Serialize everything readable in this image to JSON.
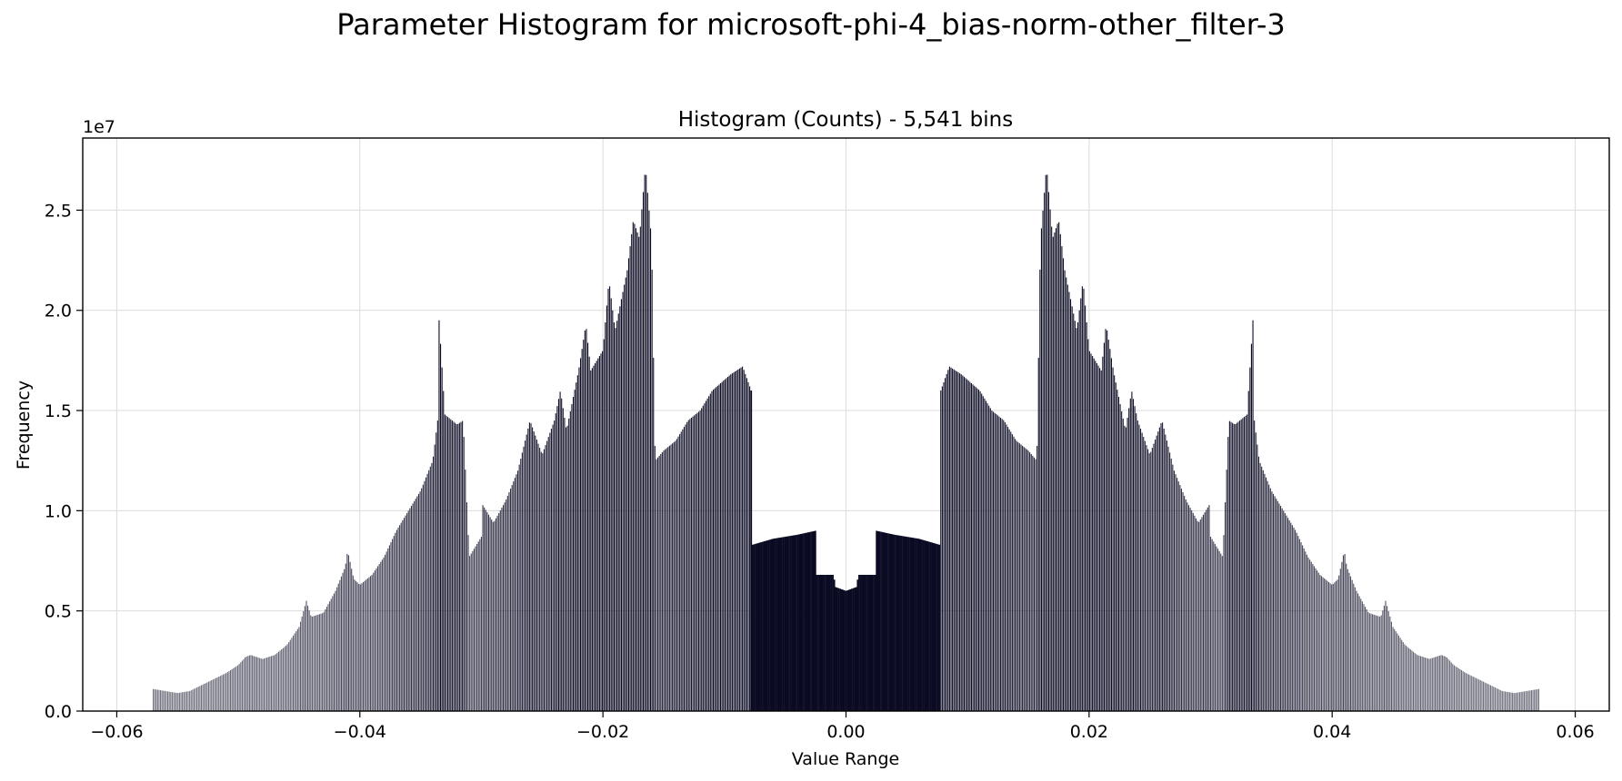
{
  "figure": {
    "suptitle": "Parameter Histogram for microsoft-phi-4_bias-norm-other_filter-3"
  },
  "chart_data": {
    "type": "bar",
    "title": "Histogram (Counts) - 5,541 bins",
    "xlabel": "Value Range",
    "ylabel": "Frequency",
    "y_offset_label": "1e7",
    "bar_color": "#0a0a23",
    "bins": 5541,
    "xlim": [
      -0.0628,
      0.0628
    ],
    "ylim": [
      0,
      2.86
    ],
    "x_ticks": [
      -0.06,
      -0.04,
      -0.02,
      0.0,
      0.02,
      0.04,
      0.06
    ],
    "x_tick_labels": [
      "−0.06",
      "−0.04",
      "−0.02",
      "0.00",
      "0.02",
      "0.04",
      "0.06"
    ],
    "y_ticks": [
      0.0,
      0.5,
      1.0,
      1.5,
      2.0,
      2.5
    ],
    "y_tick_labels": [
      "0.0",
      "0.5",
      "1.0",
      "1.5",
      "2.0",
      "2.5"
    ],
    "grid": true,
    "y_unit_multiplier": 10000000,
    "envelope_profile": [
      [
        -0.057,
        0.11
      ],
      [
        -0.055,
        0.09
      ],
      [
        -0.054,
        0.1
      ],
      [
        -0.053,
        0.13
      ],
      [
        -0.052,
        0.16
      ],
      [
        -0.051,
        0.19
      ],
      [
        -0.05,
        0.23
      ],
      [
        -0.0494,
        0.27
      ],
      [
        -0.049,
        0.28
      ],
      [
        -0.048,
        0.26
      ],
      [
        -0.047,
        0.28
      ],
      [
        -0.046,
        0.33
      ],
      [
        -0.045,
        0.42
      ],
      [
        -0.0444,
        0.55
      ],
      [
        -0.044,
        0.47
      ],
      [
        -0.043,
        0.49
      ],
      [
        -0.042,
        0.6
      ],
      [
        -0.0412,
        0.72
      ],
      [
        -0.041,
        0.8
      ],
      [
        -0.0405,
        0.66
      ],
      [
        -0.04,
        0.63
      ],
      [
        -0.039,
        0.68
      ],
      [
        -0.038,
        0.77
      ],
      [
        -0.037,
        0.9
      ],
      [
        -0.036,
        1.0
      ],
      [
        -0.035,
        1.1
      ],
      [
        -0.034,
        1.25
      ],
      [
        -0.0336,
        1.45
      ],
      [
        -0.0335,
        1.97
      ],
      [
        -0.033,
        1.48
      ],
      [
        -0.032,
        1.43
      ],
      [
        -0.0315,
        1.45
      ],
      [
        -0.031,
        0.77
      ],
      [
        -0.03,
        0.87
      ],
      [
        -0.0299,
        1.03
      ],
      [
        -0.029,
        0.94
      ],
      [
        -0.028,
        1.05
      ],
      [
        -0.027,
        1.2
      ],
      [
        -0.0264,
        1.35
      ],
      [
        -0.026,
        1.45
      ],
      [
        -0.025,
        1.28
      ],
      [
        -0.024,
        1.45
      ],
      [
        -0.0235,
        1.6
      ],
      [
        -0.023,
        1.4
      ],
      [
        -0.022,
        1.7
      ],
      [
        -0.0214,
        1.93
      ],
      [
        -0.021,
        1.7
      ],
      [
        -0.02,
        1.8
      ],
      [
        -0.0195,
        2.15
      ],
      [
        -0.019,
        1.9
      ],
      [
        -0.018,
        2.2
      ],
      [
        -0.0175,
        2.45
      ],
      [
        -0.017,
        2.36
      ],
      [
        -0.0165,
        2.72
      ],
      [
        -0.016,
        2.35
      ],
      [
        -0.0157,
        1.25
      ],
      [
        -0.015,
        1.3
      ],
      [
        -0.014,
        1.35
      ],
      [
        -0.013,
        1.45
      ],
      [
        -0.012,
        1.5
      ],
      [
        -0.011,
        1.6
      ],
      [
        -0.0095,
        1.68
      ],
      [
        -0.0085,
        1.72
      ],
      [
        -0.0078,
        1.6
      ],
      [
        -0.0077,
        0.83
      ],
      [
        -0.006,
        0.86
      ],
      [
        -0.004,
        0.88
      ],
      [
        -0.0025,
        0.9
      ],
      [
        -0.0024,
        0.68
      ],
      [
        -0.001,
        0.68
      ],
      [
        -0.0009,
        0.62
      ],
      [
        0.0,
        0.6
      ],
      [
        0.0009,
        0.62
      ],
      [
        0.001,
        0.68
      ],
      [
        0.0024,
        0.68
      ],
      [
        0.0025,
        0.9
      ],
      [
        0.004,
        0.88
      ],
      [
        0.006,
        0.86
      ],
      [
        0.0077,
        0.83
      ],
      [
        0.0078,
        1.6
      ],
      [
        0.0085,
        1.72
      ],
      [
        0.0095,
        1.68
      ],
      [
        0.011,
        1.6
      ],
      [
        0.012,
        1.5
      ],
      [
        0.013,
        1.45
      ],
      [
        0.014,
        1.35
      ],
      [
        0.015,
        1.3
      ],
      [
        0.0157,
        1.25
      ],
      [
        0.016,
        2.35
      ],
      [
        0.0165,
        2.72
      ],
      [
        0.017,
        2.36
      ],
      [
        0.0175,
        2.45
      ],
      [
        0.018,
        2.2
      ],
      [
        0.019,
        1.9
      ],
      [
        0.0195,
        2.15
      ],
      [
        0.02,
        1.8
      ],
      [
        0.021,
        1.7
      ],
      [
        0.0214,
        1.93
      ],
      [
        0.022,
        1.7
      ],
      [
        0.023,
        1.4
      ],
      [
        0.0235,
        1.6
      ],
      [
        0.024,
        1.45
      ],
      [
        0.025,
        1.28
      ],
      [
        0.026,
        1.45
      ],
      [
        0.0264,
        1.35
      ],
      [
        0.027,
        1.2
      ],
      [
        0.028,
        1.05
      ],
      [
        0.029,
        0.94
      ],
      [
        0.0299,
        1.03
      ],
      [
        0.03,
        0.87
      ],
      [
        0.031,
        0.77
      ],
      [
        0.0315,
        1.45
      ],
      [
        0.032,
        1.43
      ],
      [
        0.033,
        1.48
      ],
      [
        0.0335,
        1.97
      ],
      [
        0.0336,
        1.45
      ],
      [
        0.034,
        1.25
      ],
      [
        0.035,
        1.1
      ],
      [
        0.036,
        1.0
      ],
      [
        0.037,
        0.9
      ],
      [
        0.038,
        0.77
      ],
      [
        0.039,
        0.68
      ],
      [
        0.04,
        0.63
      ],
      [
        0.0405,
        0.66
      ],
      [
        0.041,
        0.8
      ],
      [
        0.0412,
        0.72
      ],
      [
        0.042,
        0.6
      ],
      [
        0.043,
        0.49
      ],
      [
        0.044,
        0.47
      ],
      [
        0.0444,
        0.55
      ],
      [
        0.045,
        0.42
      ],
      [
        0.046,
        0.33
      ],
      [
        0.047,
        0.28
      ],
      [
        0.048,
        0.26
      ],
      [
        0.049,
        0.28
      ],
      [
        0.0494,
        0.27
      ],
      [
        0.05,
        0.23
      ],
      [
        0.051,
        0.19
      ],
      [
        0.052,
        0.16
      ],
      [
        0.053,
        0.13
      ],
      [
        0.054,
        0.1
      ],
      [
        0.055,
        0.09
      ],
      [
        0.057,
        0.11
      ]
    ]
  }
}
